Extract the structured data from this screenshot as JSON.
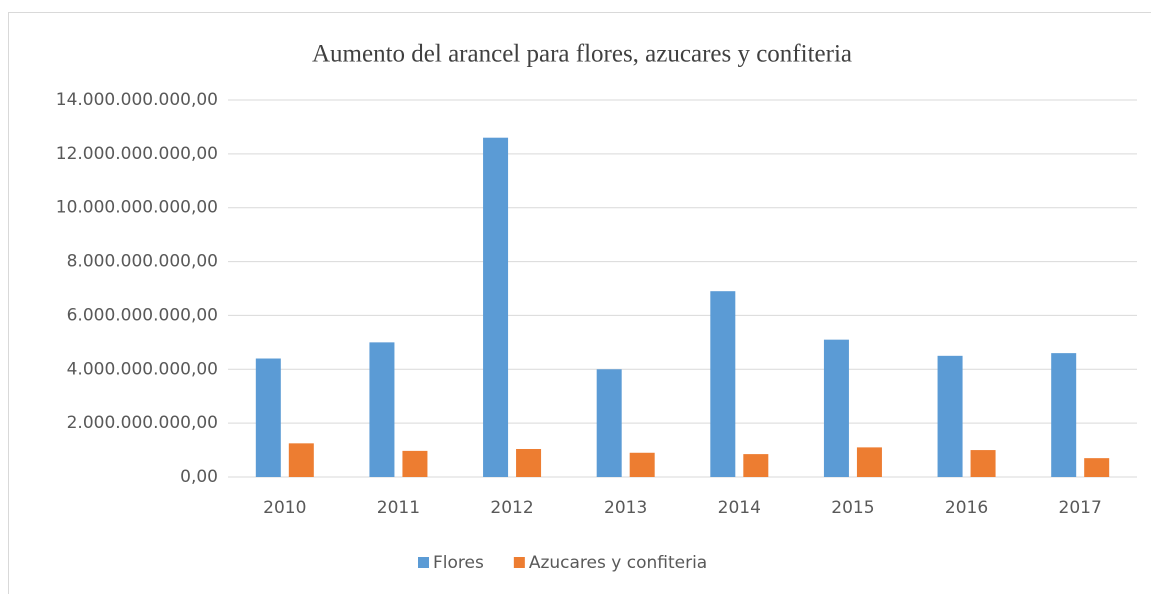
{
  "chart_data": {
    "type": "bar",
    "title": "Aumento del arancel para flores, azucares y confiteria",
    "categories": [
      "2010",
      "2011",
      "2012",
      "2013",
      "2014",
      "2015",
      "2016",
      "2017"
    ],
    "series": [
      {
        "name": "Flores",
        "color": "#5b9bd5",
        "values": [
          4400000000,
          5000000000,
          12600000000,
          4000000000,
          6900000000,
          5100000000,
          4500000000,
          4600000000
        ]
      },
      {
        "name": "Azucares y confiteria",
        "color": "#ed7d31",
        "values": [
          1250000000,
          970000000,
          1040000000,
          900000000,
          850000000,
          1100000000,
          1000000000,
          700000000
        ]
      }
    ],
    "ylim": [
      0,
      14000000000
    ],
    "yticks": [
      {
        "value": 0,
        "label": "0,00"
      },
      {
        "value": 2000000000,
        "label": "2.000.000.000,00"
      },
      {
        "value": 4000000000,
        "label": "4.000.000.000,00"
      },
      {
        "value": 6000000000,
        "label": "6.000.000.000,00"
      },
      {
        "value": 8000000000,
        "label": "8.000.000.000,00"
      },
      {
        "value": 10000000000,
        "label": "10.000.000.000,00"
      },
      {
        "value": 12000000000,
        "label": "12.000.000.000,00"
      },
      {
        "value": 14000000000,
        "label": "14.000.000.000,00"
      }
    ],
    "grid": true,
    "legend": "bottom"
  }
}
